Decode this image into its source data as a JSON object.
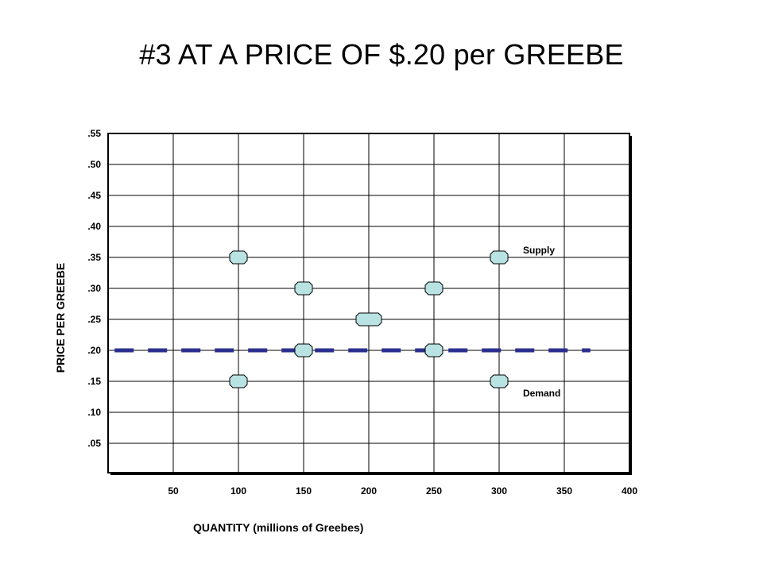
{
  "chart_data": {
    "type": "scatter",
    "title": "#3 AT A PRICE OF $.20 per GREEBE",
    "xlabel": "QUANTITY (millions of Greebes)",
    "ylabel": "PRICE PER GREEBE",
    "x_ticks": [
      {
        "value": 50,
        "label": "50"
      },
      {
        "value": 100,
        "label": "100"
      },
      {
        "value": 150,
        "label": "150"
      },
      {
        "value": 200,
        "label": "200"
      },
      {
        "value": 250,
        "label": "250"
      },
      {
        "value": 300,
        "label": "300"
      },
      {
        "value": 350,
        "label": "350"
      },
      {
        "value": 400,
        "label": "400"
      }
    ],
    "y_ticks": [
      {
        "value": 0.05,
        "label": ".05"
      },
      {
        "value": 0.1,
        "label": ".10"
      },
      {
        "value": 0.15,
        "label": ".15"
      },
      {
        "value": 0.2,
        "label": ".20"
      },
      {
        "value": 0.25,
        "label": ".25"
      },
      {
        "value": 0.3,
        "label": ".30"
      },
      {
        "value": 0.35,
        "label": ".35"
      },
      {
        "value": 0.4,
        "label": ".40"
      },
      {
        "value": 0.45,
        "label": ".45"
      },
      {
        "value": 0.5,
        "label": ".50"
      },
      {
        "value": 0.55,
        "label": ".55"
      }
    ],
    "xlim": [
      5,
      415
    ],
    "ylim": [
      0.0,
      0.55
    ],
    "grid": true,
    "series": [
      {
        "name": "Supply",
        "color": "#b9e2e2",
        "points": [
          {
            "x": 150,
            "y": 0.2
          },
          {
            "x": 200,
            "y": 0.25
          },
          {
            "x": 250,
            "y": 0.3
          },
          {
            "x": 300,
            "y": 0.35
          }
        ],
        "label_at": {
          "x": 300,
          "y": 0.35
        }
      },
      {
        "name": "Demand",
        "color": "#b9e2e2",
        "points": [
          {
            "x": 100,
            "y": 0.35
          },
          {
            "x": 150,
            "y": 0.3
          },
          {
            "x": 250,
            "y": 0.2
          },
          {
            "x": 300,
            "y": 0.15
          }
        ],
        "label_at": {
          "x": 300,
          "y": 0.15
        }
      },
      {
        "points": [
          {
            "x": 100,
            "y": 0.15
          }
        ]
      }
    ],
    "reference_line": {
      "y": 0.2,
      "x_range": [
        5,
        370
      ],
      "style": "dashed",
      "color": "#2b2f8f"
    }
  }
}
